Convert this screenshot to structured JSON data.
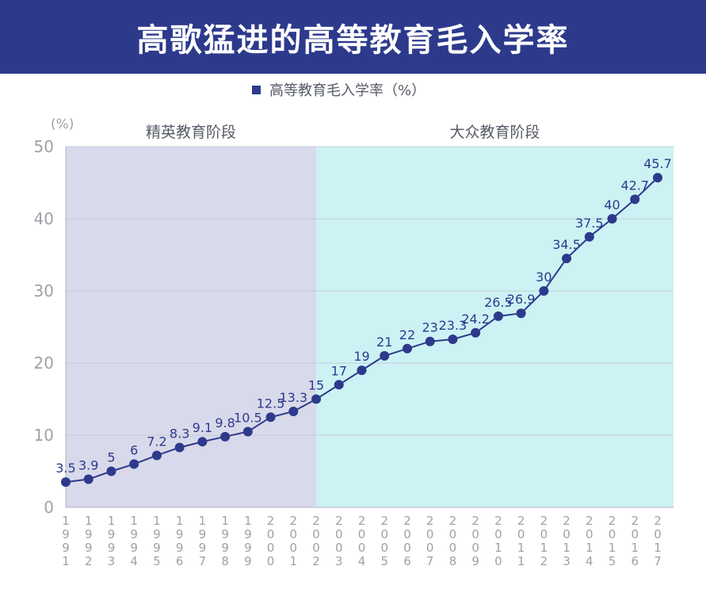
{
  "title": "高歌猛进的高等教育毛入学率",
  "chart_data": {
    "type": "line",
    "legend": "高等教育毛入学率（%）",
    "unit_label": "(%)",
    "ylim": [
      0,
      50
    ],
    "yticks": [
      0,
      10,
      20,
      30,
      40,
      50
    ],
    "grid": "horizontal",
    "legend_position": "top-center",
    "x": [
      "1991",
      "1992",
      "1993",
      "1994",
      "1995",
      "1996",
      "1997",
      "1998",
      "1999",
      "2000",
      "2001",
      "2002",
      "2003",
      "2004",
      "2005",
      "2006",
      "2007",
      "2008",
      "2009",
      "2010",
      "2011",
      "2012",
      "2013",
      "2014",
      "2015",
      "2016",
      "2017"
    ],
    "series": [
      {
        "name": "高等教育毛入学率（%）",
        "values": [
          3.5,
          3.9,
          5,
          6,
          7.2,
          8.3,
          9.1,
          9.8,
          10.5,
          12.5,
          13.3,
          15,
          17,
          19,
          21,
          22,
          23,
          23.3,
          24.2,
          26.5,
          26.9,
          30,
          34.5,
          37.5,
          40,
          42.7,
          45.7
        ],
        "labels": [
          "3.5",
          "3.9",
          "5",
          "6",
          "7.2",
          "8.3",
          "9.1",
          "9.8",
          "10.5",
          "12.5",
          "13.3",
          "15",
          "17",
          "19",
          "21",
          "22",
          "23",
          "23.3",
          "24.2",
          "26.5",
          "26.9",
          "30",
          "34.5",
          "37.5",
          "40",
          "42.7",
          "45.7"
        ]
      }
    ],
    "regions": [
      {
        "label": "精英教育阶段",
        "from": "1991",
        "to": "2002",
        "color": "#d8d9ea"
      },
      {
        "label": "大众教育阶段",
        "from": "2002",
        "to": "2017",
        "color": "#ccf2f4"
      }
    ],
    "colors": {
      "line": "#2d3a8c",
      "marker": "#2d3a8c",
      "title_bg": "#2d3a8c"
    }
  }
}
